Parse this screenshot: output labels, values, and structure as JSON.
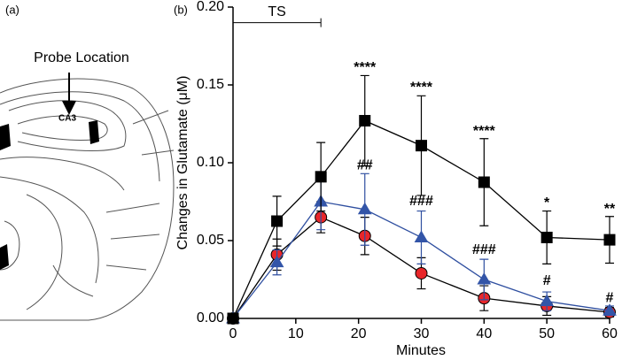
{
  "panel_a": {
    "label": "(a)",
    "annotation": "Probe Location",
    "region": "CA3"
  },
  "chart_data": {
    "type": "line",
    "panel_label": "(b)",
    "x_label": "Minutes",
    "y_label": "Changes in Glutamate (μM)",
    "xlim": [
      0,
      60
    ],
    "xticks": [
      0,
      10,
      20,
      30,
      40,
      50,
      60
    ],
    "ylim": [
      0,
      0.2
    ],
    "yticks": [
      {
        "value": 0,
        "label": "0.00"
      },
      {
        "value": 0.05,
        "label": "0.05"
      },
      {
        "value": 0.1,
        "label": "0.10"
      },
      {
        "value": 0.15,
        "label": "0.15"
      },
      {
        "value": 0.2,
        "label": "0.20"
      }
    ],
    "x": [
      0,
      7,
      14,
      21,
      30,
      40,
      50,
      60
    ],
    "series": [
      {
        "color": "#000000",
        "marker": "square",
        "marker_fill": "#000000",
        "values": [
          0,
          0.0625,
          0.091,
          0.127,
          0.111,
          0.0875,
          0.052,
          0.0505
        ],
        "errors": [
          0,
          0.016,
          0.022,
          0.029,
          0.032,
          0.028,
          0.017,
          0.015
        ]
      },
      {
        "color": "#2f4fa0",
        "marker": "triangle",
        "marker_fill": "#3355a8",
        "values": [
          0,
          0.036,
          0.075,
          0.07,
          0.052,
          0.025,
          0.011,
          0.005
        ],
        "errors": [
          0,
          0.008,
          0.018,
          0.023,
          0.017,
          0.013,
          0.006,
          0.003
        ]
      },
      {
        "color": "#000000",
        "marker": "circle",
        "marker_fill": "#e8262a",
        "values": [
          0,
          0.041,
          0.065,
          0.053,
          0.029,
          0.013,
          0.008,
          0.004
        ],
        "errors": [
          0,
          0.01,
          0.01,
          0.012,
          0.01,
          0.008,
          0.006,
          0.003
        ]
      }
    ],
    "bracket": {
      "label": "TS",
      "x": [
        0,
        14
      ],
      "y": 0.19
    },
    "annotations": [
      {
        "text": "****",
        "x": 21,
        "y": 0.161
      },
      {
        "text": "****",
        "x": 30,
        "y": 0.148
      },
      {
        "text": "****",
        "x": 40,
        "y": 0.12
      },
      {
        "text": "*",
        "x": 50,
        "y": 0.074
      },
      {
        "text": "**",
        "x": 60,
        "y": 0.07
      },
      {
        "text": "##",
        "x": 21,
        "y": 0.098
      },
      {
        "text": "###",
        "x": 30,
        "y": 0.075
      },
      {
        "text": "###",
        "x": 40,
        "y": 0.044
      },
      {
        "text": "#",
        "x": 50,
        "y": 0.024
      },
      {
        "text": "#",
        "x": 60,
        "y": 0.013
      }
    ]
  }
}
